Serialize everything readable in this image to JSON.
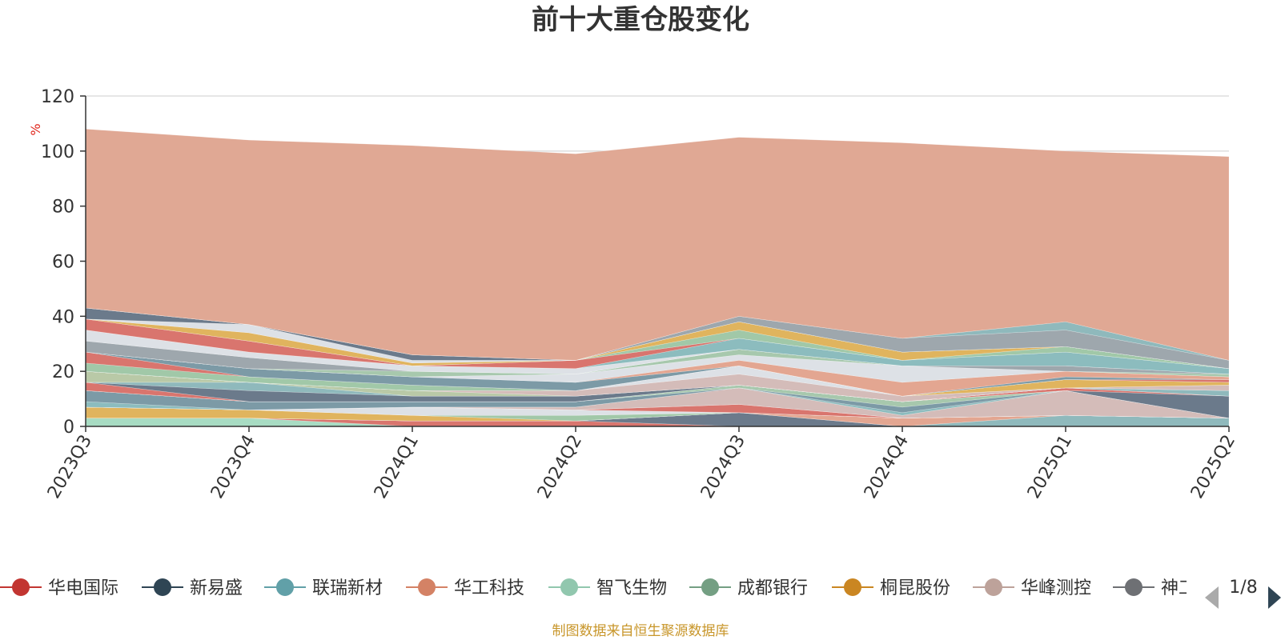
{
  "chart_data": {
    "type": "area",
    "stacked": true,
    "title": "前十大重仓股变化",
    "ylabel": "%",
    "xlabel": "",
    "ylim": [
      0,
      120
    ],
    "yticks": [
      0,
      20,
      40,
      60,
      80,
      100,
      120
    ],
    "grid": true,
    "legend_position": "bottom",
    "categories": [
      "2023Q3",
      "2023Q4",
      "2024Q1",
      "2024Q2",
      "2024Q3",
      "2024Q4",
      "2025Q1",
      "2025Q2"
    ],
    "series": [
      {
        "name": "",
        "color": "#a8dcc3",
        "values": [
          3,
          3,
          0,
          0,
          0,
          0,
          0,
          0
        ]
      },
      {
        "name": "",
        "color": "#d9756e",
        "values": [
          0,
          0,
          2,
          2,
          0,
          0,
          0,
          0
        ]
      },
      {
        "name": "",
        "color": "#6b7a8b",
        "values": [
          0,
          0,
          0,
          0,
          5,
          0,
          0,
          0
        ]
      },
      {
        "name": "",
        "color": "#8fb9bc",
        "values": [
          0,
          0,
          0,
          0,
          0,
          0,
          4,
          3
        ]
      },
      {
        "name": "",
        "color": "#e3a691",
        "values": [
          0,
          0,
          0,
          0,
          0,
          3,
          0,
          0
        ]
      },
      {
        "name": "",
        "color": "#e0b45e",
        "values": [
          4,
          3,
          2,
          0,
          0,
          0,
          0,
          0
        ]
      },
      {
        "name": "",
        "color": "#a1c8a8",
        "values": [
          0,
          0,
          0,
          2,
          0,
          0,
          0,
          0
        ]
      },
      {
        "name": "",
        "color": "#dde1e6",
        "values": [
          0,
          0,
          3,
          2,
          0,
          0,
          0,
          0
        ]
      },
      {
        "name": "",
        "color": "#d9756e",
        "values": [
          0,
          0,
          0,
          0,
          3,
          0,
          0,
          0
        ]
      },
      {
        "name": "",
        "color": "#b9c9a7",
        "values": [
          0,
          0,
          0,
          0,
          0,
          0,
          0,
          0
        ]
      },
      {
        "name": "",
        "color": "#d4bcb9",
        "values": [
          0,
          0,
          0,
          1,
          6,
          1,
          9,
          0
        ]
      },
      {
        "name": "",
        "color": "#8cbcbe",
        "values": [
          2,
          0,
          0,
          0,
          0,
          1,
          0,
          0
        ]
      },
      {
        "name": "",
        "color": "#7c9aa6",
        "values": [
          4,
          3,
          2,
          2,
          0,
          2,
          0,
          0
        ]
      },
      {
        "name": "",
        "color": "#a7c8ad",
        "values": [
          0,
          0,
          0,
          0,
          1,
          2,
          0,
          0
        ]
      },
      {
        "name": "",
        "color": "#6b7a8b",
        "values": [
          0,
          0,
          0,
          0,
          0,
          0,
          0,
          8
        ]
      },
      {
        "name": "",
        "color": "#d9756e",
        "values": [
          3,
          0,
          0,
          0,
          0,
          0,
          1,
          0
        ]
      },
      {
        "name": "",
        "color": "#6b7a8b",
        "values": [
          0,
          4,
          2,
          2,
          0,
          0,
          0,
          0
        ]
      },
      {
        "name": "",
        "color": "#8fb9bc",
        "values": [
          0,
          3,
          0,
          0,
          0,
          0,
          0,
          2
        ]
      },
      {
        "name": "",
        "color": "#b9c9a7",
        "values": [
          4,
          0,
          2,
          0,
          0,
          0,
          0,
          0
        ]
      },
      {
        "name": "",
        "color": "#d4bcb9",
        "values": [
          0,
          0,
          0,
          2,
          4,
          2,
          0,
          2
        ]
      },
      {
        "name": "",
        "color": "#dde1e6",
        "values": [
          0,
          0,
          0,
          0,
          3,
          0,
          0,
          0
        ]
      },
      {
        "name": "",
        "color": "#e0b45e",
        "values": [
          0,
          0,
          0,
          0,
          0,
          0,
          3,
          1
        ]
      },
      {
        "name": "",
        "color": "#a1c8a8",
        "values": [
          3,
          2,
          2,
          0,
          0,
          0,
          0,
          0
        ]
      },
      {
        "name": "",
        "color": "#d9756e",
        "values": [
          4,
          0,
          0,
          0,
          0,
          0,
          0,
          1
        ]
      },
      {
        "name": "",
        "color": "#7c9aa6",
        "values": [
          0,
          3,
          3,
          3,
          0,
          0,
          1,
          0
        ]
      },
      {
        "name": "",
        "color": "#e3a691",
        "values": [
          0,
          0,
          0,
          0,
          2,
          5,
          2,
          1
        ]
      },
      {
        "name": "",
        "color": "#dde1e6",
        "values": [
          0,
          0,
          0,
          3,
          2,
          6,
          0,
          0
        ]
      },
      {
        "name": "",
        "color": "#a7c8ad",
        "values": [
          0,
          0,
          2,
          0,
          2,
          0,
          0,
          1
        ]
      },
      {
        "name": "",
        "color": "#9ea7ad",
        "values": [
          4,
          4,
          0,
          0,
          0,
          0,
          2,
          0
        ]
      },
      {
        "name": "",
        "color": "#dde1e6",
        "values": [
          4,
          2,
          2,
          2,
          0,
          0,
          0,
          0
        ]
      },
      {
        "name": "",
        "color": "#8cbcbe",
        "values": [
          0,
          0,
          0,
          0,
          4,
          2,
          5,
          2
        ]
      },
      {
        "name": "",
        "color": "#d9756e",
        "values": [
          4,
          4,
          0,
          3,
          0,
          0,
          0,
          0
        ]
      },
      {
        "name": "",
        "color": "#a1c8a8",
        "values": [
          0,
          0,
          0,
          0,
          3,
          0,
          2,
          0
        ]
      },
      {
        "name": "",
        "color": "#e0b45e",
        "values": [
          0,
          3,
          1,
          0,
          3,
          3,
          0,
          0
        ]
      },
      {
        "name": "",
        "color": "#dde1e6",
        "values": [
          0,
          3,
          1,
          0,
          0,
          0,
          0,
          0
        ]
      },
      {
        "name": "",
        "color": "#6b7a8b",
        "values": [
          4,
          0,
          2,
          0,
          0,
          0,
          0,
          0
        ]
      },
      {
        "name": "",
        "color": "#9ea7ad",
        "values": [
          0,
          0,
          0,
          0,
          2,
          5,
          6,
          3
        ]
      },
      {
        "name": "",
        "color": "#8fb9bc",
        "values": [
          0,
          0,
          0,
          0,
          0,
          0,
          3,
          0
        ]
      },
      {
        "name": "",
        "color": "#e0a894",
        "values": [
          65,
          67,
          76,
          75,
          65,
          71,
          62,
          74
        ]
      }
    ]
  },
  "legend": {
    "items": [
      {
        "label": "华电国际",
        "color": "#c23531"
      },
      {
        "label": "新易盛",
        "color": "#2f4554"
      },
      {
        "label": "联瑞新材",
        "color": "#61a0a8"
      },
      {
        "label": "华工科技",
        "color": "#d48265"
      },
      {
        "label": "智飞生物",
        "color": "#91c7ae"
      },
      {
        "label": "成都银行",
        "color": "#749f83"
      },
      {
        "label": "桐昆股份",
        "color": "#ca8622"
      },
      {
        "label": "华峰测控",
        "color": "#bda29a"
      },
      {
        "label": "神工",
        "color": "#6e7074"
      }
    ],
    "page_indicator": "1/8"
  },
  "source": "制图数据来自恒生聚源数据库"
}
